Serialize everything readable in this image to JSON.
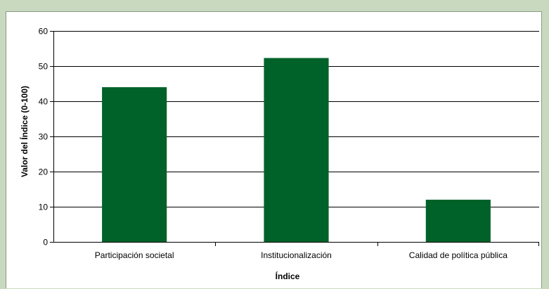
{
  "chart_data": {
    "type": "bar",
    "categories": [
      "Participación societal",
      "Institucionalización",
      "Calidad de política pública"
    ],
    "values": [
      44,
      52.3,
      12
    ],
    "xlabel": "Índice",
    "ylabel": "Valor del Índice (0-100)",
    "ylim": [
      0,
      60
    ],
    "yticks": [
      0,
      10,
      20,
      30,
      40,
      50,
      60
    ],
    "grid": true,
    "legend": "none",
    "colors": {
      "bar": "#006229",
      "grid": "#000000",
      "background": "#ffffff",
      "outer": "#c8d9c0"
    }
  }
}
